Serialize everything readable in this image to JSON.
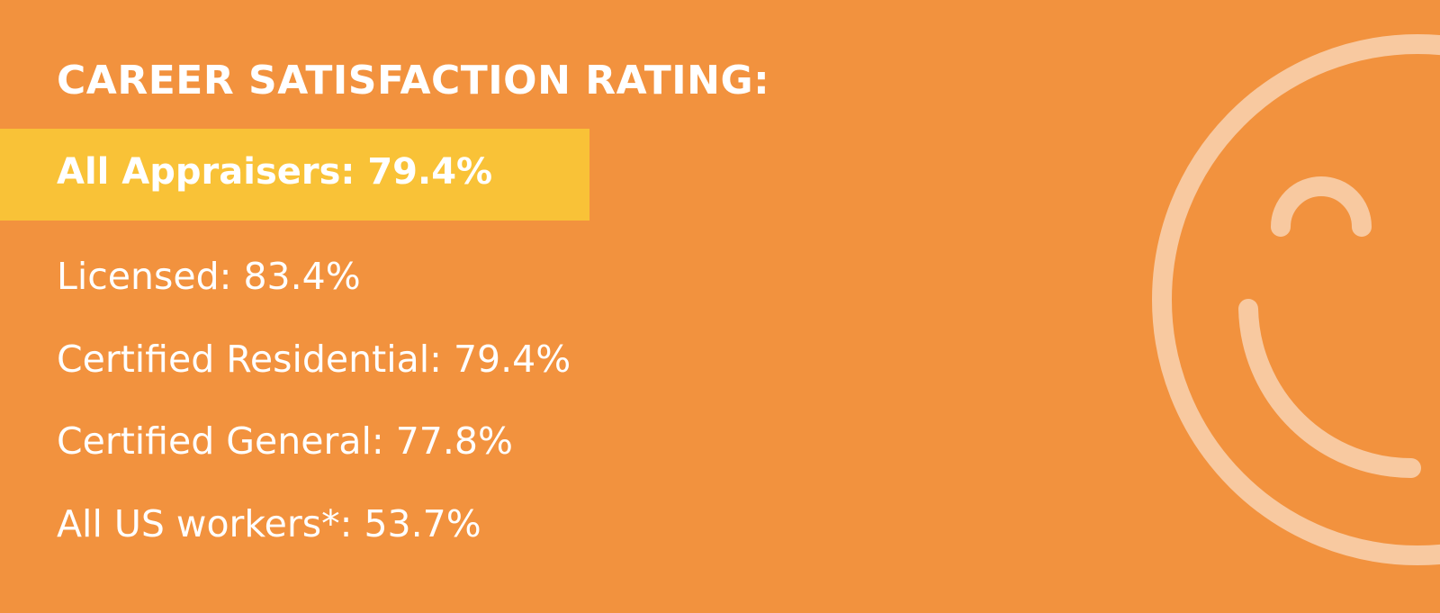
{
  "header": {
    "title": "CAREER SATISFACTION RATING:"
  },
  "highlight": {
    "text": "All Appraisers: 79.4%"
  },
  "items": [
    "Licensed: 83.4%",
    "Certified Residential: 79.4%",
    "Certified General: 77.8%",
    "All US workers*: 53.7%"
  ]
}
